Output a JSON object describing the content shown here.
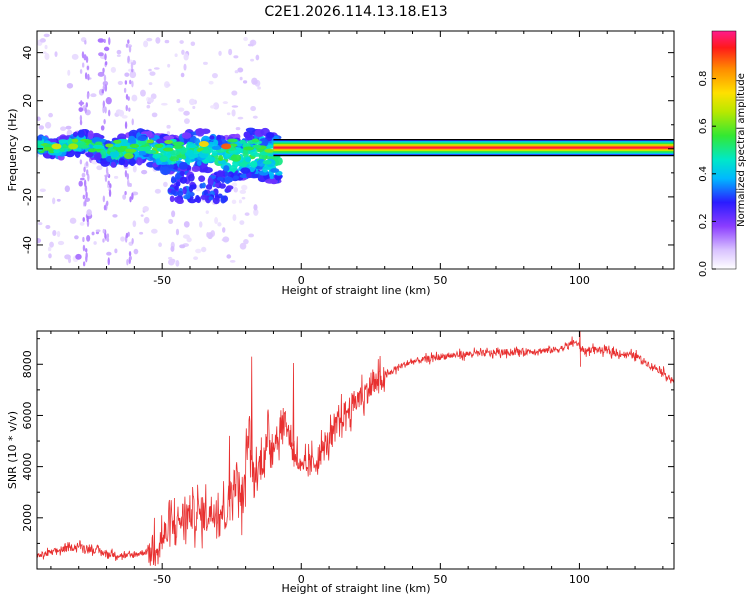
{
  "title": "C2E1.2026.114.13.18.E13",
  "colors": {
    "axes": "#000000",
    "snr_line": "#e83030",
    "colormap": [
      "#ffffff",
      "#e8d8ff",
      "#b080ff",
      "#6a00e8",
      "#1f2bff",
      "#00d0ff",
      "#1fe87a",
      "#7ce800",
      "#e8e800",
      "#ff9f00",
      "#ff1a1a",
      "#ff1a8c"
    ]
  },
  "chart_data": [
    {
      "type": "heatmap",
      "xlabel": "Height of straight line (km)",
      "ylabel": "Frequency (Hz)",
      "xlim": [
        -95,
        134
      ],
      "ylim": [
        -50,
        49
      ],
      "x_ticks": [
        -50,
        0,
        50,
        100
      ],
      "x_tick_labels": [
        "-50",
        "0",
        "50",
        "100"
      ],
      "y_ticks": [
        -40,
        -20,
        0,
        20,
        40
      ],
      "y_tick_labels": [
        "-40",
        "-20",
        "0",
        "20",
        "40"
      ],
      "colorbar": {
        "label": "Normalized spectral amplitude",
        "range": [
          0,
          1
        ],
        "ticks": [
          0.0,
          0.2,
          0.4,
          0.6,
          0.8
        ],
        "tick_labels": [
          "0.0",
          "0.2",
          "0.4",
          "0.6",
          "0.8"
        ]
      },
      "ridge": {
        "description": "strong narrow tone near 0 Hz, continuous from about -10 km to the right edge",
        "x_range": [
          -10,
          134
        ],
        "frequency_hz": 0.5,
        "amplitude": 0.95
      },
      "noisy_region": {
        "x_range": [
          -95,
          -10
        ],
        "center_frequency_hz": [
          2,
          -5
        ],
        "spread_hz": [
          4,
          14
        ]
      }
    },
    {
      "type": "line",
      "xlabel": "Height of straight line (km)",
      "ylabel": "SNR (10 * v/v)",
      "xlim": [
        -95,
        134
      ],
      "ylim": [
        0,
        9300
      ],
      "x_ticks": [
        -50,
        0,
        50,
        100
      ],
      "x_tick_labels": [
        "-50",
        "0",
        "50",
        "100"
      ],
      "y_ticks": [
        2000,
        4000,
        6000,
        8000
      ],
      "y_tick_labels": [
        "2000",
        "4000",
        "6000",
        "8000"
      ],
      "series": [
        {
          "x": [
            -95,
            -88,
            -80,
            -70,
            -62,
            -55,
            -50,
            -45,
            -40,
            -35,
            -30,
            -27,
            -25,
            -23,
            -21,
            -19,
            -17,
            -15,
            -12,
            -10,
            -8,
            -6,
            -4,
            -2,
            0,
            5,
            10,
            15,
            20,
            25,
            30,
            35,
            40,
            50,
            60,
            70,
            80,
            90,
            95,
            98,
            100,
            102,
            105,
            110,
            115,
            120,
            125,
            130,
            134
          ],
          "y": [
            500,
            700,
            900,
            600,
            500,
            700,
            1200,
            1800,
            2200,
            2100,
            2400,
            2200,
            3200,
            3600,
            2400,
            5400,
            3400,
            4000,
            4900,
            5000,
            5200,
            6000,
            5000,
            4600,
            3800,
            4200,
            5000,
            6000,
            6600,
            7100,
            7500,
            7900,
            8100,
            8300,
            8400,
            8450,
            8500,
            8550,
            8650,
            8900,
            8700,
            8500,
            8600,
            8500,
            8400,
            8350,
            8000,
            7700,
            7300
          ]
        }
      ]
    }
  ]
}
